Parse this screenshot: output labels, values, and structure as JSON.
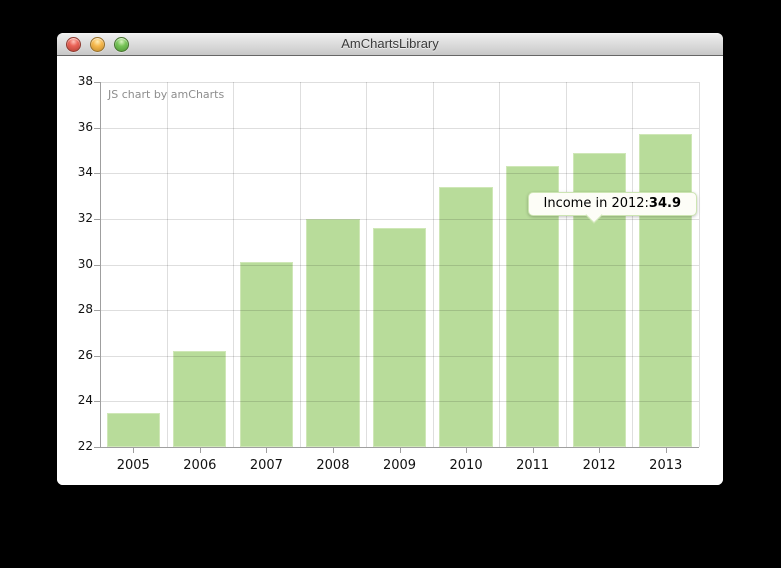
{
  "window": {
    "title": "AmChartsLibrary",
    "traffic_lights": {
      "close": "close",
      "minimize": "minimize",
      "zoom": "zoom"
    }
  },
  "chart": {
    "credit": "JS chart by amCharts"
  },
  "tooltip": {
    "label": "Income in 2012:",
    "value": "34.9",
    "target_category": "2012",
    "anchor_value": 31.9
  },
  "chart_data": {
    "type": "bar",
    "title": "",
    "series_name": "Income",
    "categories": [
      "2005",
      "2006",
      "2007",
      "2008",
      "2009",
      "2010",
      "2011",
      "2012",
      "2013"
    ],
    "values": [
      23.5,
      26.2,
      30.1,
      32,
      31.6,
      33.4,
      34.3,
      34.9,
      35.7
    ],
    "xlabel": "",
    "ylabel": "",
    "ylim": [
      22,
      38
    ],
    "ytick_step": 2,
    "grid": true,
    "legend": false,
    "bar_width_fraction": 0.8,
    "colors": {
      "bar_fill": "#b8dc9a",
      "bar_border": "#cfe7b7",
      "grid": "#d9d9d9",
      "axis": "#9f9f9f",
      "label": "#111111",
      "credit": "#8d8d8d",
      "tooltip_bg": "#fdfdf7",
      "tooltip_border": "#cde5b3",
      "tooltip_text": "#000000"
    }
  }
}
